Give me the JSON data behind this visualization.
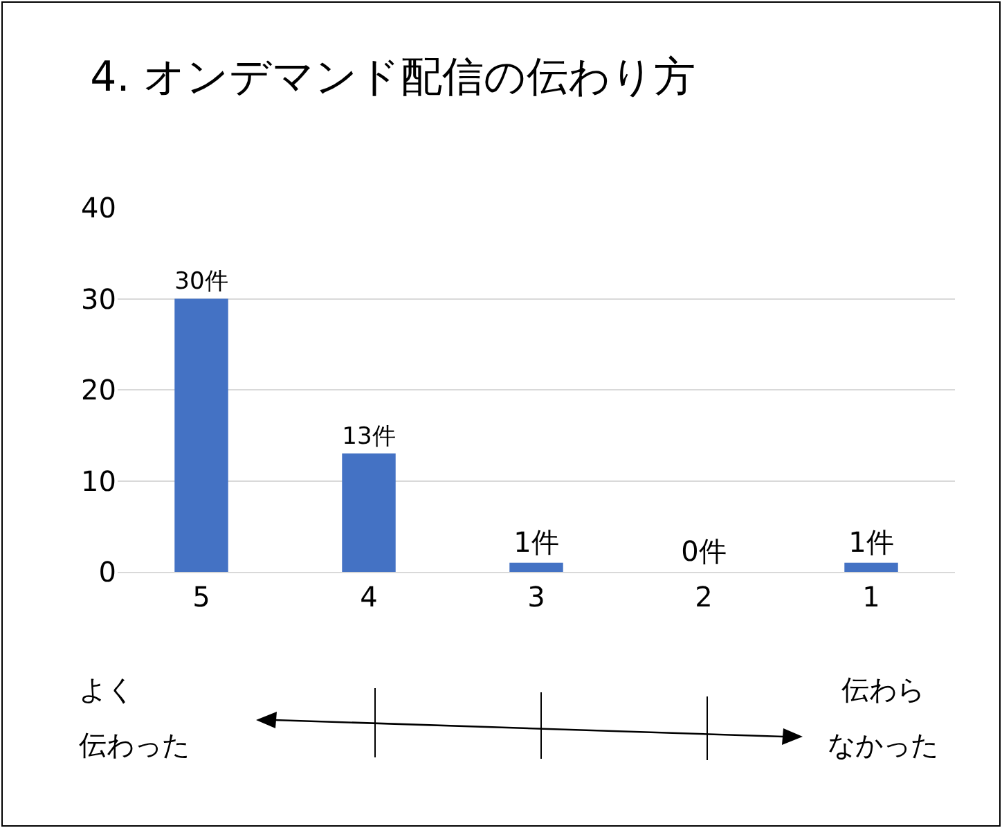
{
  "chart_data": {
    "type": "bar",
    "title": "4. オンデマンド配信の伝わり方",
    "categories": [
      "5",
      "4",
      "3",
      "2",
      "1"
    ],
    "values": [
      30,
      13,
      1,
      0,
      1
    ],
    "value_labels": [
      "30件",
      "13件",
      "1件",
      "0件",
      "1件"
    ],
    "color": "#4472c4",
    "ylim": [
      0,
      40
    ],
    "yticks": [
      0,
      10,
      20,
      30,
      40
    ],
    "grid": "y",
    "legend": false,
    "annotations": [
      "よく",
      "伝わった",
      "伝わら",
      "なかった"
    ]
  }
}
